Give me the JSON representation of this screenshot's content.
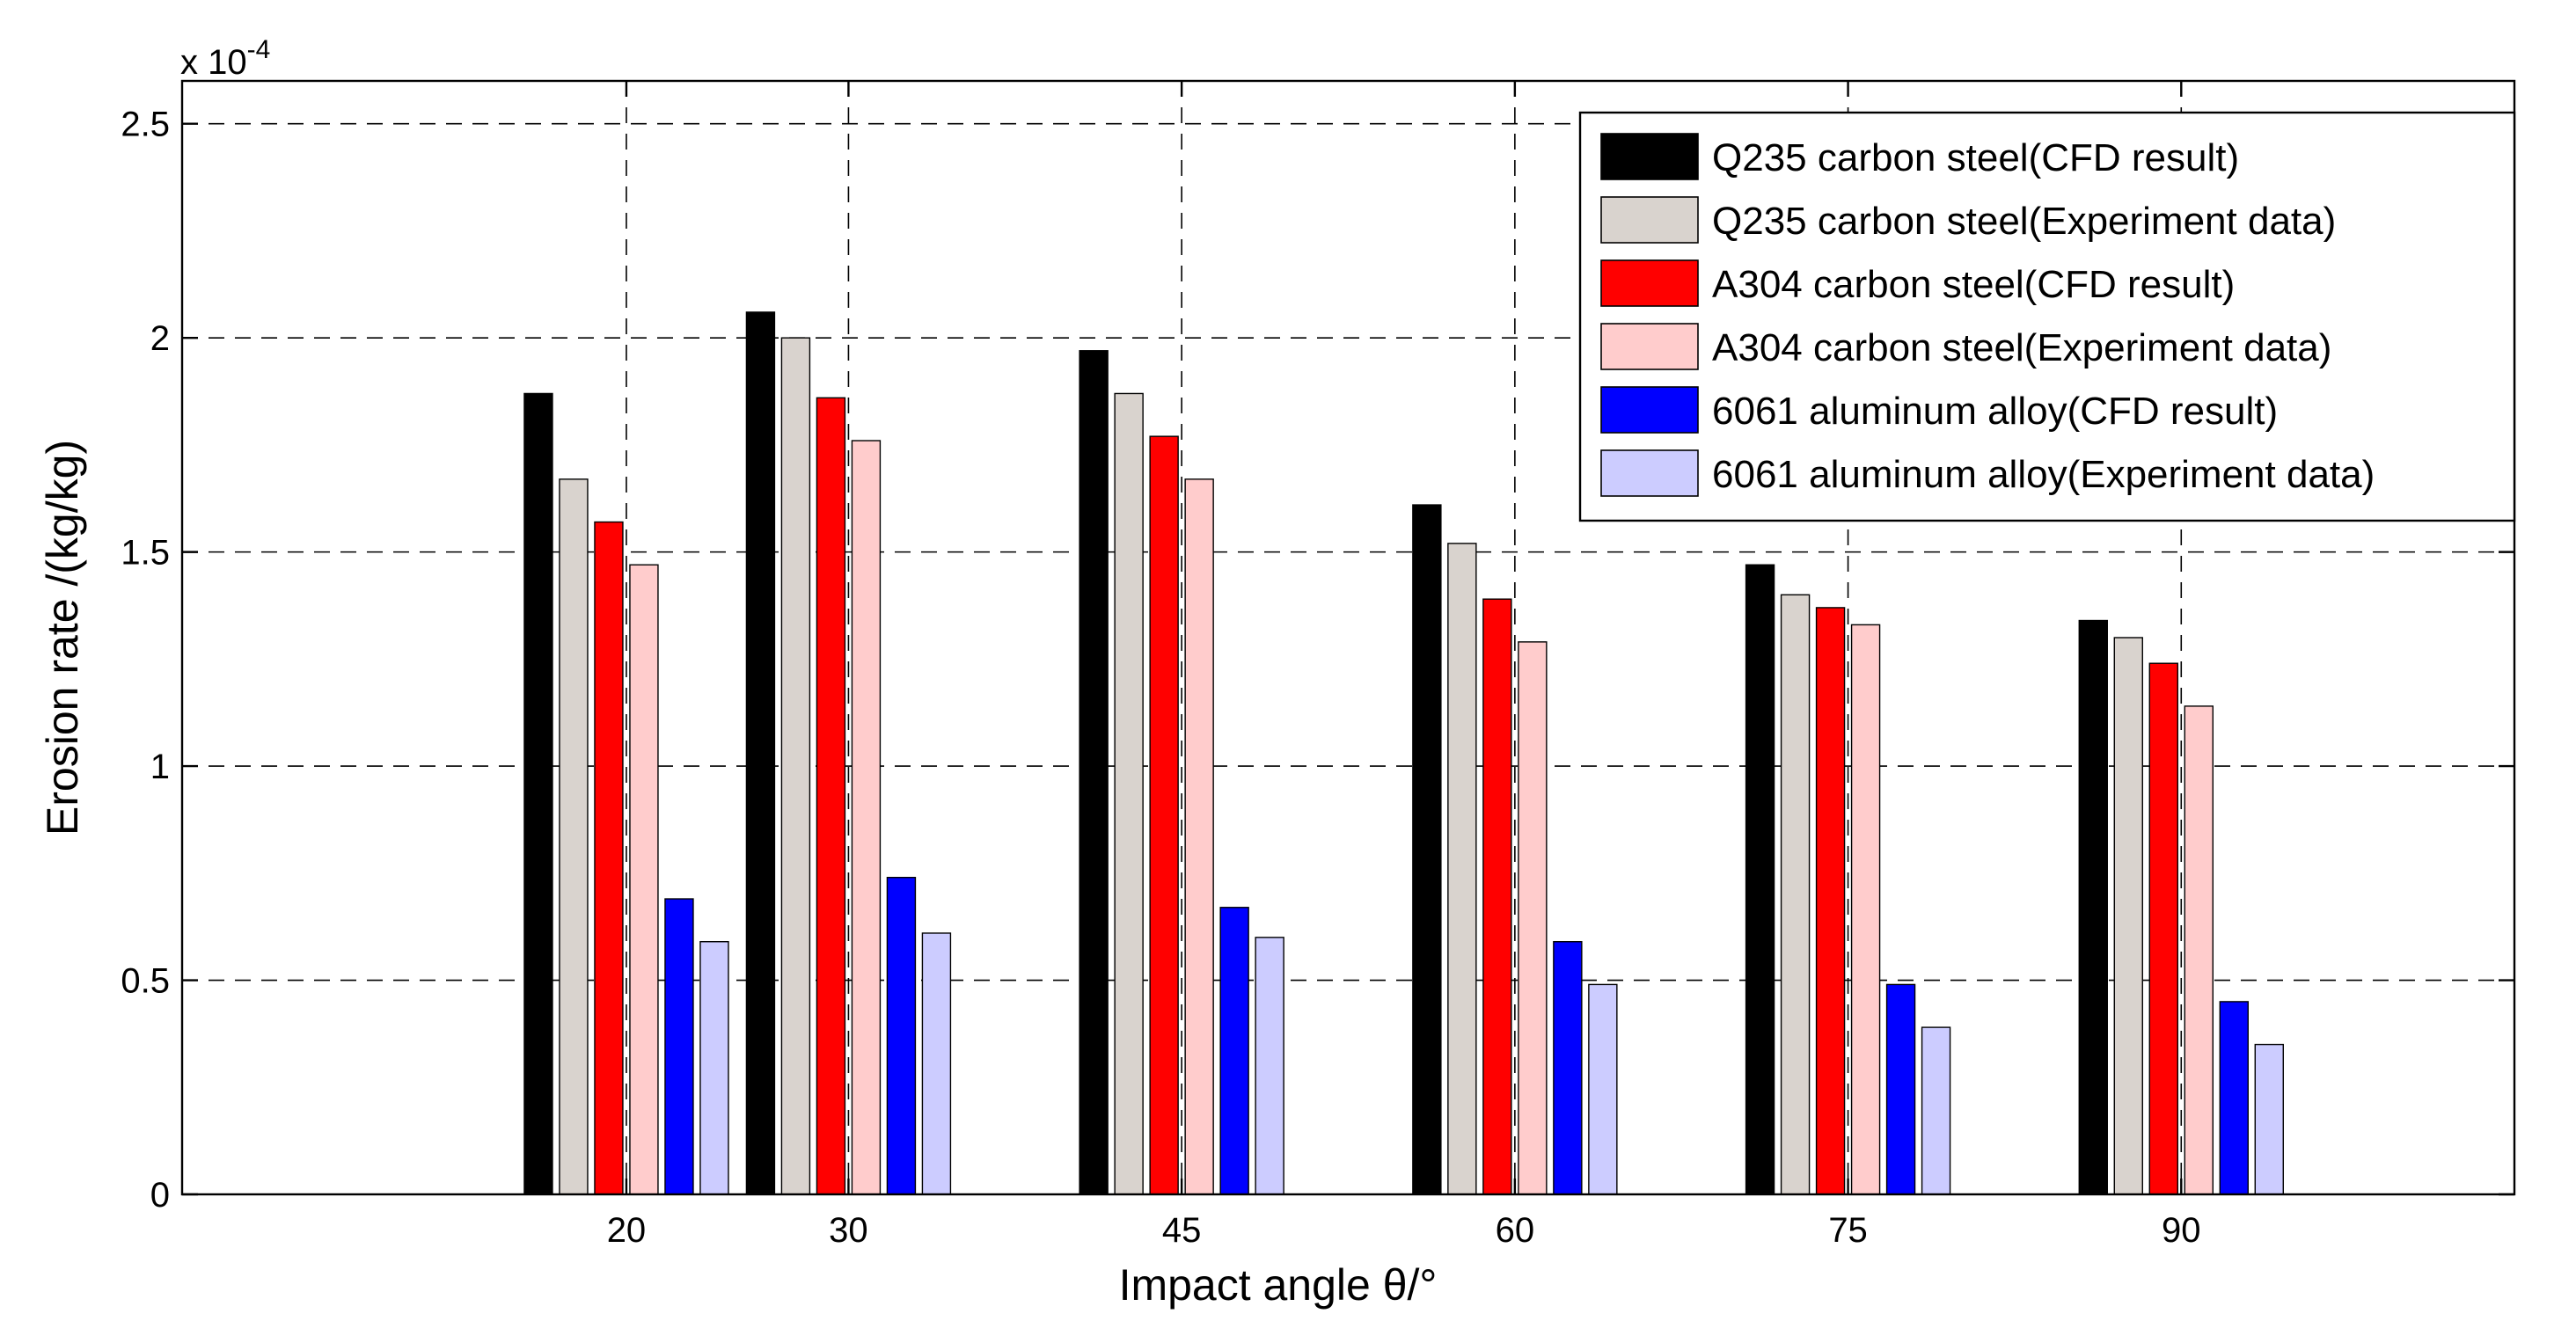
{
  "chart_data": {
    "type": "bar",
    "title": "",
    "xlabel": "Impact angle θ/°",
    "ylabel": "Erosion rate /(kg/kg)",
    "y_exponent_label": "x 10",
    "y_exponent_power": "-4",
    "x": [
      20,
      30,
      45,
      60,
      75,
      90
    ],
    "xlim": [
      0,
      105
    ],
    "ylim": [
      0,
      2.6
    ],
    "yticks": [
      0,
      0.5,
      1,
      1.5,
      2,
      2.5
    ],
    "ytick_labels": [
      "0",
      "0.5",
      "1",
      "1.5",
      "2",
      "2.5"
    ],
    "xtick_labels": [
      "20",
      "30",
      "45",
      "60",
      "75",
      "90"
    ],
    "grid": true,
    "legend_position": "top-right",
    "series": [
      {
        "name": "Q235 carbon steel(CFD result)",
        "color": "#000000",
        "values": [
          1.87,
          2.06,
          1.97,
          1.61,
          1.47,
          1.34
        ]
      },
      {
        "name": "Q235 carbon steel(Experiment data)",
        "color": "#d9d3ce",
        "values": [
          1.67,
          2.0,
          1.87,
          1.52,
          1.4,
          1.3
        ]
      },
      {
        "name": "A304 carbon steel(CFD result)",
        "color": "#ff0000",
        "values": [
          1.57,
          1.86,
          1.77,
          1.39,
          1.37,
          1.24
        ]
      },
      {
        "name": "A304 carbon steel(Experiment data)",
        "color": "#ffcccc",
        "values": [
          1.47,
          1.76,
          1.67,
          1.29,
          1.33,
          1.14
        ]
      },
      {
        "name": "6061 aluminum alloy(CFD result)",
        "color": "#0000ff",
        "values": [
          0.69,
          0.74,
          0.67,
          0.59,
          0.49,
          0.45
        ]
      },
      {
        "name": "6061 aluminum alloy(Experiment data)",
        "color": "#ccccff",
        "values": [
          0.59,
          0.61,
          0.6,
          0.49,
          0.39,
          0.35
        ]
      }
    ]
  }
}
